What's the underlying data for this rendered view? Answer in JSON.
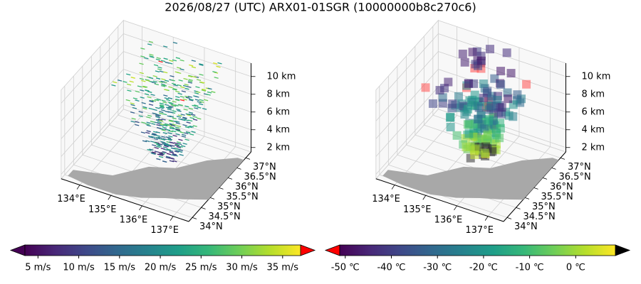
{
  "title": "2026/08/27 (UTC) ARX01-01SGR (10000000b8c270c6)",
  "chart_data": [
    {
      "type": "quiver3d",
      "xlim": [
        133.4,
        137.5
      ],
      "ylim": [
        33.8,
        37.3
      ],
      "zlim": [
        1.5,
        11.5
      ],
      "xticks": [
        {
          "value": 134,
          "label": "134°E"
        },
        {
          "value": 135,
          "label": "135°E"
        },
        {
          "value": 136,
          "label": "136°E"
        },
        {
          "value": 137,
          "label": "137°E"
        }
      ],
      "yticks": [
        {
          "value": 34,
          "label": "34°N"
        },
        {
          "value": 34.5,
          "label": "34.5°N"
        },
        {
          "value": 35,
          "label": "35°N"
        },
        {
          "value": 35.5,
          "label": "35.5°N"
        },
        {
          "value": 36,
          "label": "36°N"
        },
        {
          "value": 36.5,
          "label": "36.5°N"
        },
        {
          "value": 37,
          "label": "37°N"
        }
      ],
      "zticks": [
        {
          "value": 2,
          "label": "2 km"
        },
        {
          "value": 4,
          "label": "4 km"
        },
        {
          "value": 6,
          "label": "6 km"
        },
        {
          "value": 8,
          "label": "8 km"
        },
        {
          "value": 10,
          "label": "10 km"
        }
      ],
      "colorbar": {
        "cmap": "viridis",
        "lim": [
          3.4,
          37.2
        ],
        "under_color": "#440154",
        "over_color": "#ff0000",
        "ticks": [
          {
            "value": 5,
            "label": "5 m/s"
          },
          {
            "value": 10,
            "label": "10 m/s"
          },
          {
            "value": 15,
            "label": "15 m/s"
          },
          {
            "value": 20,
            "label": "20 m/s"
          },
          {
            "value": 25,
            "label": "25 m/s"
          },
          {
            "value": 30,
            "label": "30 m/s"
          },
          {
            "value": 35,
            "label": "35 m/s"
          }
        ]
      }
    },
    {
      "type": "voxel3d",
      "xlim": [
        133.4,
        137.5
      ],
      "ylim": [
        33.8,
        37.3
      ],
      "zlim": [
        1.5,
        11.5
      ],
      "xticks": [
        {
          "value": 134,
          "label": "134°E"
        },
        {
          "value": 135,
          "label": "135°E"
        },
        {
          "value": 136,
          "label": "136°E"
        },
        {
          "value": 137,
          "label": "137°E"
        }
      ],
      "yticks": [
        {
          "value": 34,
          "label": "34°N"
        },
        {
          "value": 34.5,
          "label": "34.5°N"
        },
        {
          "value": 35,
          "label": "35°N"
        },
        {
          "value": 35.5,
          "label": "35.5°N"
        },
        {
          "value": 36,
          "label": "36°N"
        },
        {
          "value": 36.5,
          "label": "36.5°N"
        },
        {
          "value": 37,
          "label": "37°N"
        }
      ],
      "zticks": [
        {
          "value": 2,
          "label": "2 km"
        },
        {
          "value": 4,
          "label": "4 km"
        },
        {
          "value": 6,
          "label": "6 km"
        },
        {
          "value": 8,
          "label": "8 km"
        },
        {
          "value": 10,
          "label": "10 km"
        }
      ],
      "colorbar": {
        "cmap": "viridis",
        "lim": [
          -51.2,
          8.6
        ],
        "under_color": "#ff0000",
        "over_color": "#000000",
        "ticks": [
          {
            "value": -50,
            "label": "-50 ℃"
          },
          {
            "value": -40,
            "label": "-40 ℃"
          },
          {
            "value": -30,
            "label": "-30 ℃"
          },
          {
            "value": -20,
            "label": "-20 ℃"
          },
          {
            "value": -10,
            "label": "-10 ℃"
          },
          {
            "value": 0,
            "label": "0 ℃"
          }
        ]
      }
    }
  ]
}
